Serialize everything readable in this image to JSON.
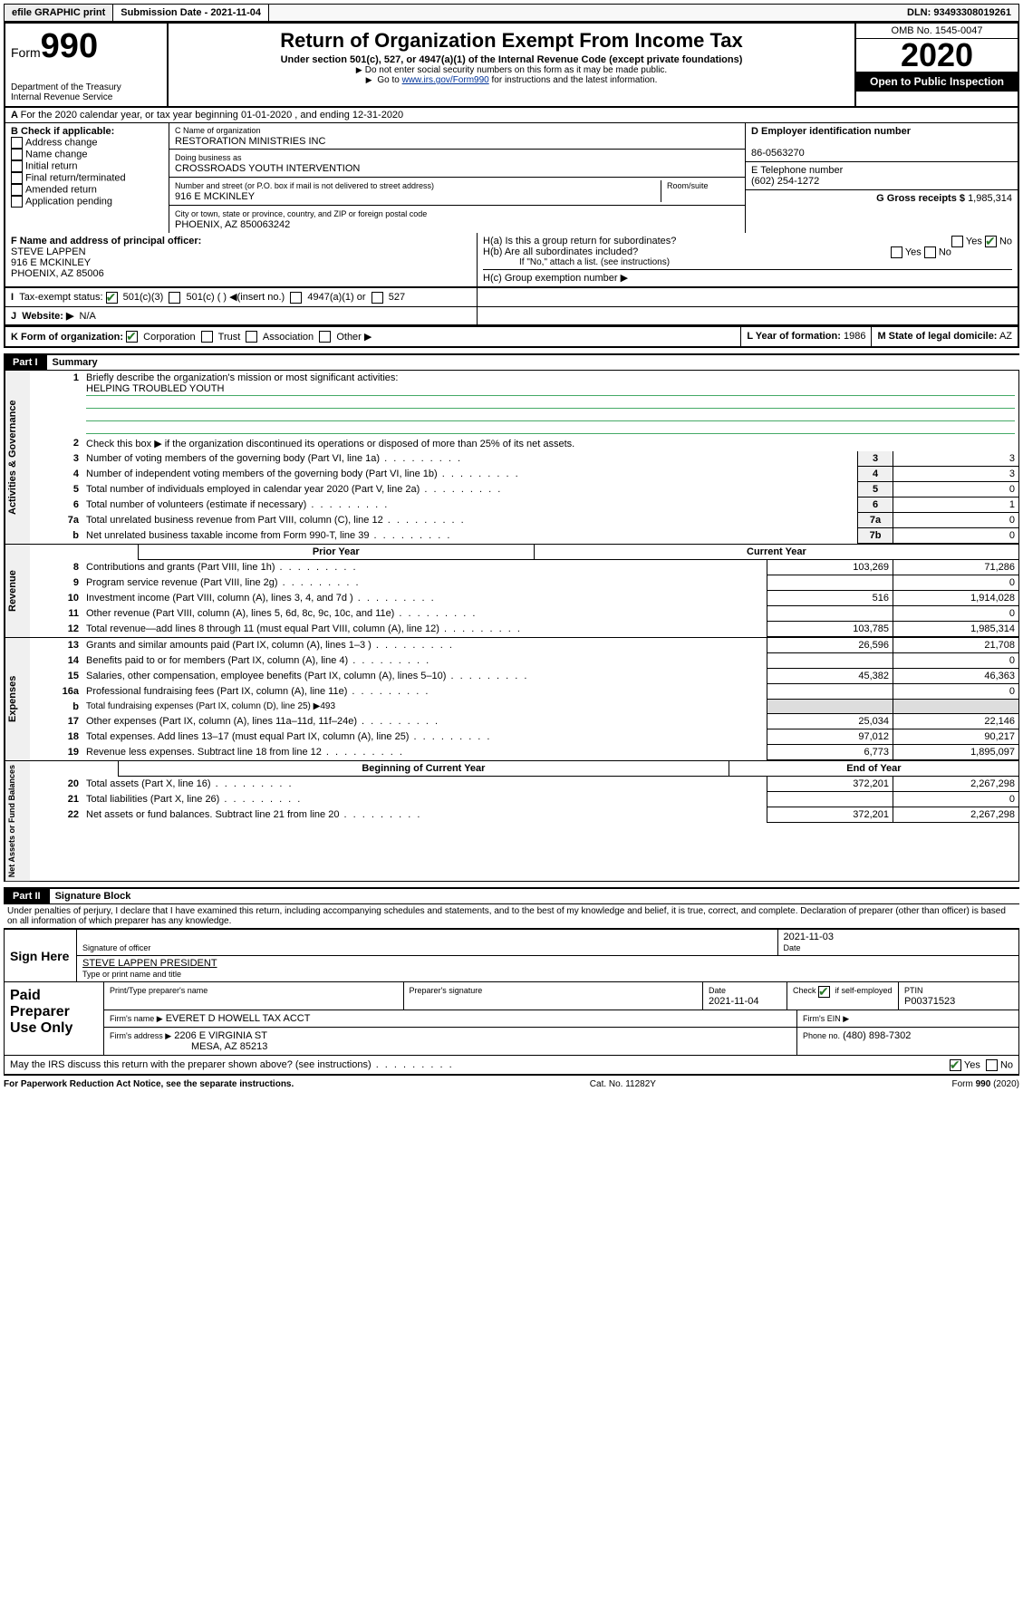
{
  "topbar": {
    "efile": "efile GRAPHIC print",
    "submission_label": "Submission Date - 2021-11-04",
    "dln": "DLN: 93493308019261"
  },
  "header": {
    "form_label": "Form",
    "form_number": "990",
    "dept": "Department of the Treasury",
    "irs": "Internal Revenue Service",
    "title": "Return of Organization Exempt From Income Tax",
    "sub": "Under section 501(c), 527, or 4947(a)(1) of the Internal Revenue Code (except private foundations)",
    "note1": "Do not enter social security numbers on this form as it may be made public.",
    "note2_pre": "Go to ",
    "note2_link": "www.irs.gov/Form990",
    "note2_post": " for instructions and the latest information.",
    "omb": "OMB No. 1545-0047",
    "year": "2020",
    "open": "Open to Public Inspection"
  },
  "period": {
    "line": "For the 2020 calendar year, or tax year beginning 01-01-2020    , and ending 12-31-2020"
  },
  "boxB": {
    "label": "B Check if applicable:",
    "opts": [
      "Address change",
      "Name change",
      "Initial return",
      "Final return/terminated",
      "Amended return",
      "Application pending"
    ]
  },
  "boxC": {
    "name_label": "C Name of organization",
    "name": "RESTORATION MINISTRIES INC",
    "dba_label": "Doing business as",
    "dba": "CROSSROADS YOUTH INTERVENTION",
    "addr_label": "Number and street (or P.O. box if mail is not delivered to street address)",
    "room_label": "Room/suite",
    "addr": "916 E MCKINLEY",
    "city_label": "City or town, state or province, country, and ZIP or foreign postal code",
    "city": "PHOENIX, AZ   850063242"
  },
  "boxD": {
    "label": "D Employer identification number",
    "value": "86-0563270"
  },
  "boxE": {
    "label": "E Telephone number",
    "value": "(602) 254-1272"
  },
  "boxG": {
    "label": "G Gross receipts $",
    "value": "1,985,314"
  },
  "boxF": {
    "label": "F  Name and address of principal officer:",
    "name": "STEVE LAPPEN",
    "addr": "916 E MCKINLEY",
    "city": "PHOENIX, AZ   85006"
  },
  "boxH": {
    "ha": "H(a)   Is this a group return for subordinates?",
    "hb": "H(b)   Are all subordinates included?",
    "hb_note": "If \"No,\" attach a list. (see instructions)",
    "hc": "H(c)   Group exemption number ▶"
  },
  "boxI": {
    "label": "Tax-exempt status:",
    "opts": [
      "501(c)(3)",
      "501(c) (  ) ◀(insert no.)",
      "4947(a)(1) or",
      "527"
    ]
  },
  "boxJ": {
    "label": "Website: ▶",
    "value": "N/A"
  },
  "boxK": {
    "label": "K Form of organization:",
    "opts": [
      "Corporation",
      "Trust",
      "Association",
      "Other ▶"
    ]
  },
  "boxL": {
    "label": "L Year of formation:",
    "value": "1986"
  },
  "boxM": {
    "label": "M State of legal domicile:",
    "value": "AZ"
  },
  "part1": {
    "label": "Part I",
    "title": "Summary",
    "q1": "Briefly describe the organization's mission or most significant activities:",
    "q1a": "HELPING TROUBLED YOUTH",
    "q2": "Check this box ▶         if the organization discontinued its operations or disposed of more than 25% of its net assets.",
    "rows_gov": [
      {
        "n": "3",
        "t": "Number of voting members of the governing body (Part VI, line 1a)",
        "k": "3",
        "v": "3"
      },
      {
        "n": "4",
        "t": "Number of independent voting members of the governing body (Part VI, line 1b)",
        "k": "4",
        "v": "3"
      },
      {
        "n": "5",
        "t": "Total number of individuals employed in calendar year 2020 (Part V, line 2a)",
        "k": "5",
        "v": "0"
      },
      {
        "n": "6",
        "t": "Total number of volunteers (estimate if necessary)",
        "k": "6",
        "v": "1"
      },
      {
        "n": "7a",
        "t": "Total unrelated business revenue from Part VIII, column (C), line 12",
        "k": "7a",
        "v": "0"
      },
      {
        "n": "  b",
        "t": "Net unrelated business taxable income from Form 990-T, line 39",
        "k": "7b",
        "v": "0"
      }
    ],
    "prior_label": "Prior Year",
    "current_label": "Current Year",
    "rows_rev": [
      {
        "n": "8",
        "t": "Contributions and grants (Part VIII, line 1h)",
        "p": "103,269",
        "c": "71,286"
      },
      {
        "n": "9",
        "t": "Program service revenue (Part VIII, line 2g)",
        "p": "",
        "c": "0"
      },
      {
        "n": "10",
        "t": "Investment income (Part VIII, column (A), lines 3, 4, and 7d )",
        "p": "516",
        "c": "1,914,028"
      },
      {
        "n": "11",
        "t": "Other revenue (Part VIII, column (A), lines 5, 6d, 8c, 9c, 10c, and 11e)",
        "p": "",
        "c": "0"
      },
      {
        "n": "12",
        "t": "Total revenue—add lines 8 through 11 (must equal Part VIII, column (A), line 12)",
        "p": "103,785",
        "c": "1,985,314"
      }
    ],
    "rows_exp": [
      {
        "n": "13",
        "t": "Grants and similar amounts paid (Part IX, column (A), lines 1–3 )",
        "p": "26,596",
        "c": "21,708"
      },
      {
        "n": "14",
        "t": "Benefits paid to or for members (Part IX, column (A), line 4)",
        "p": "",
        "c": "0"
      },
      {
        "n": "15",
        "t": "Salaries, other compensation, employee benefits (Part IX, column (A), lines 5–10)",
        "p": "45,382",
        "c": "46,363"
      },
      {
        "n": "16a",
        "t": "Professional fundraising fees (Part IX, column (A), line 11e)",
        "p": "",
        "c": "0"
      },
      {
        "n": "  b",
        "t": "Total fundraising expenses (Part IX, column (D), line 25) ▶493",
        "p": "—",
        "c": "—"
      },
      {
        "n": "17",
        "t": "Other expenses (Part IX, column (A), lines 11a–11d, 11f–24e)",
        "p": "25,034",
        "c": "22,146"
      },
      {
        "n": "18",
        "t": "Total expenses. Add lines 13–17 (must equal Part IX, column (A), line 25)",
        "p": "97,012",
        "c": "90,217"
      },
      {
        "n": "19",
        "t": "Revenue less expenses. Subtract line 18 from line 12",
        "p": "6,773",
        "c": "1,895,097"
      }
    ],
    "begin_label": "Beginning of Current Year",
    "end_label": "End of Year",
    "rows_net": [
      {
        "n": "20",
        "t": "Total assets (Part X, line 16)",
        "p": "372,201",
        "c": "2,267,298"
      },
      {
        "n": "21",
        "t": "Total liabilities (Part X, line 26)",
        "p": "",
        "c": "0"
      },
      {
        "n": "22",
        "t": "Net assets or fund balances. Subtract line 21 from line 20",
        "p": "372,201",
        "c": "2,267,298"
      }
    ],
    "side_gov": "Activities & Governance",
    "side_rev": "Revenue",
    "side_exp": "Expenses",
    "side_net": "Net Assets or Fund Balances"
  },
  "part2": {
    "label": "Part II",
    "title": "Signature Block",
    "decl": "Under penalties of perjury, I declare that I have examined this return, including accompanying schedules and statements, and to the best of my knowledge and belief, it is true, correct, and complete. Declaration of preparer (other than officer) is based on all information of which preparer has any knowledge.",
    "sign_here": "Sign Here",
    "sig_officer": "Signature of officer",
    "sig_date": "2021-11-03",
    "date_lbl": "Date",
    "officer_name": "STEVE LAPPEN  PRESIDENT",
    "officer_name_lbl": "Type or print name and title",
    "paid": "Paid Preparer Use Only",
    "prep_name_lbl": "Print/Type preparer's name",
    "prep_sig_lbl": "Preparer's signature",
    "prep_date": "2021-11-04",
    "check_self": "Check          if self-employed",
    "ptin_lbl": "PTIN",
    "ptin": "P00371523",
    "firm_name_lbl": "Firm's name      ▶",
    "firm_name": "EVERET D HOWELL TAX ACCT",
    "firm_ein_lbl": "Firm's EIN ▶",
    "firm_addr_lbl": "Firm's address ▶",
    "firm_addr": "2206 E VIRGINIA ST",
    "firm_city": "MESA, AZ   85213",
    "phone_lbl": "Phone no.",
    "phone": "(480) 898-7302",
    "discuss": "May the IRS discuss this return with the preparer shown above? (see instructions)"
  },
  "footer": {
    "left": "For Paperwork Reduction Act Notice, see the separate instructions.",
    "mid": "Cat. No. 11282Y",
    "right": "Form 990 (2020)"
  }
}
